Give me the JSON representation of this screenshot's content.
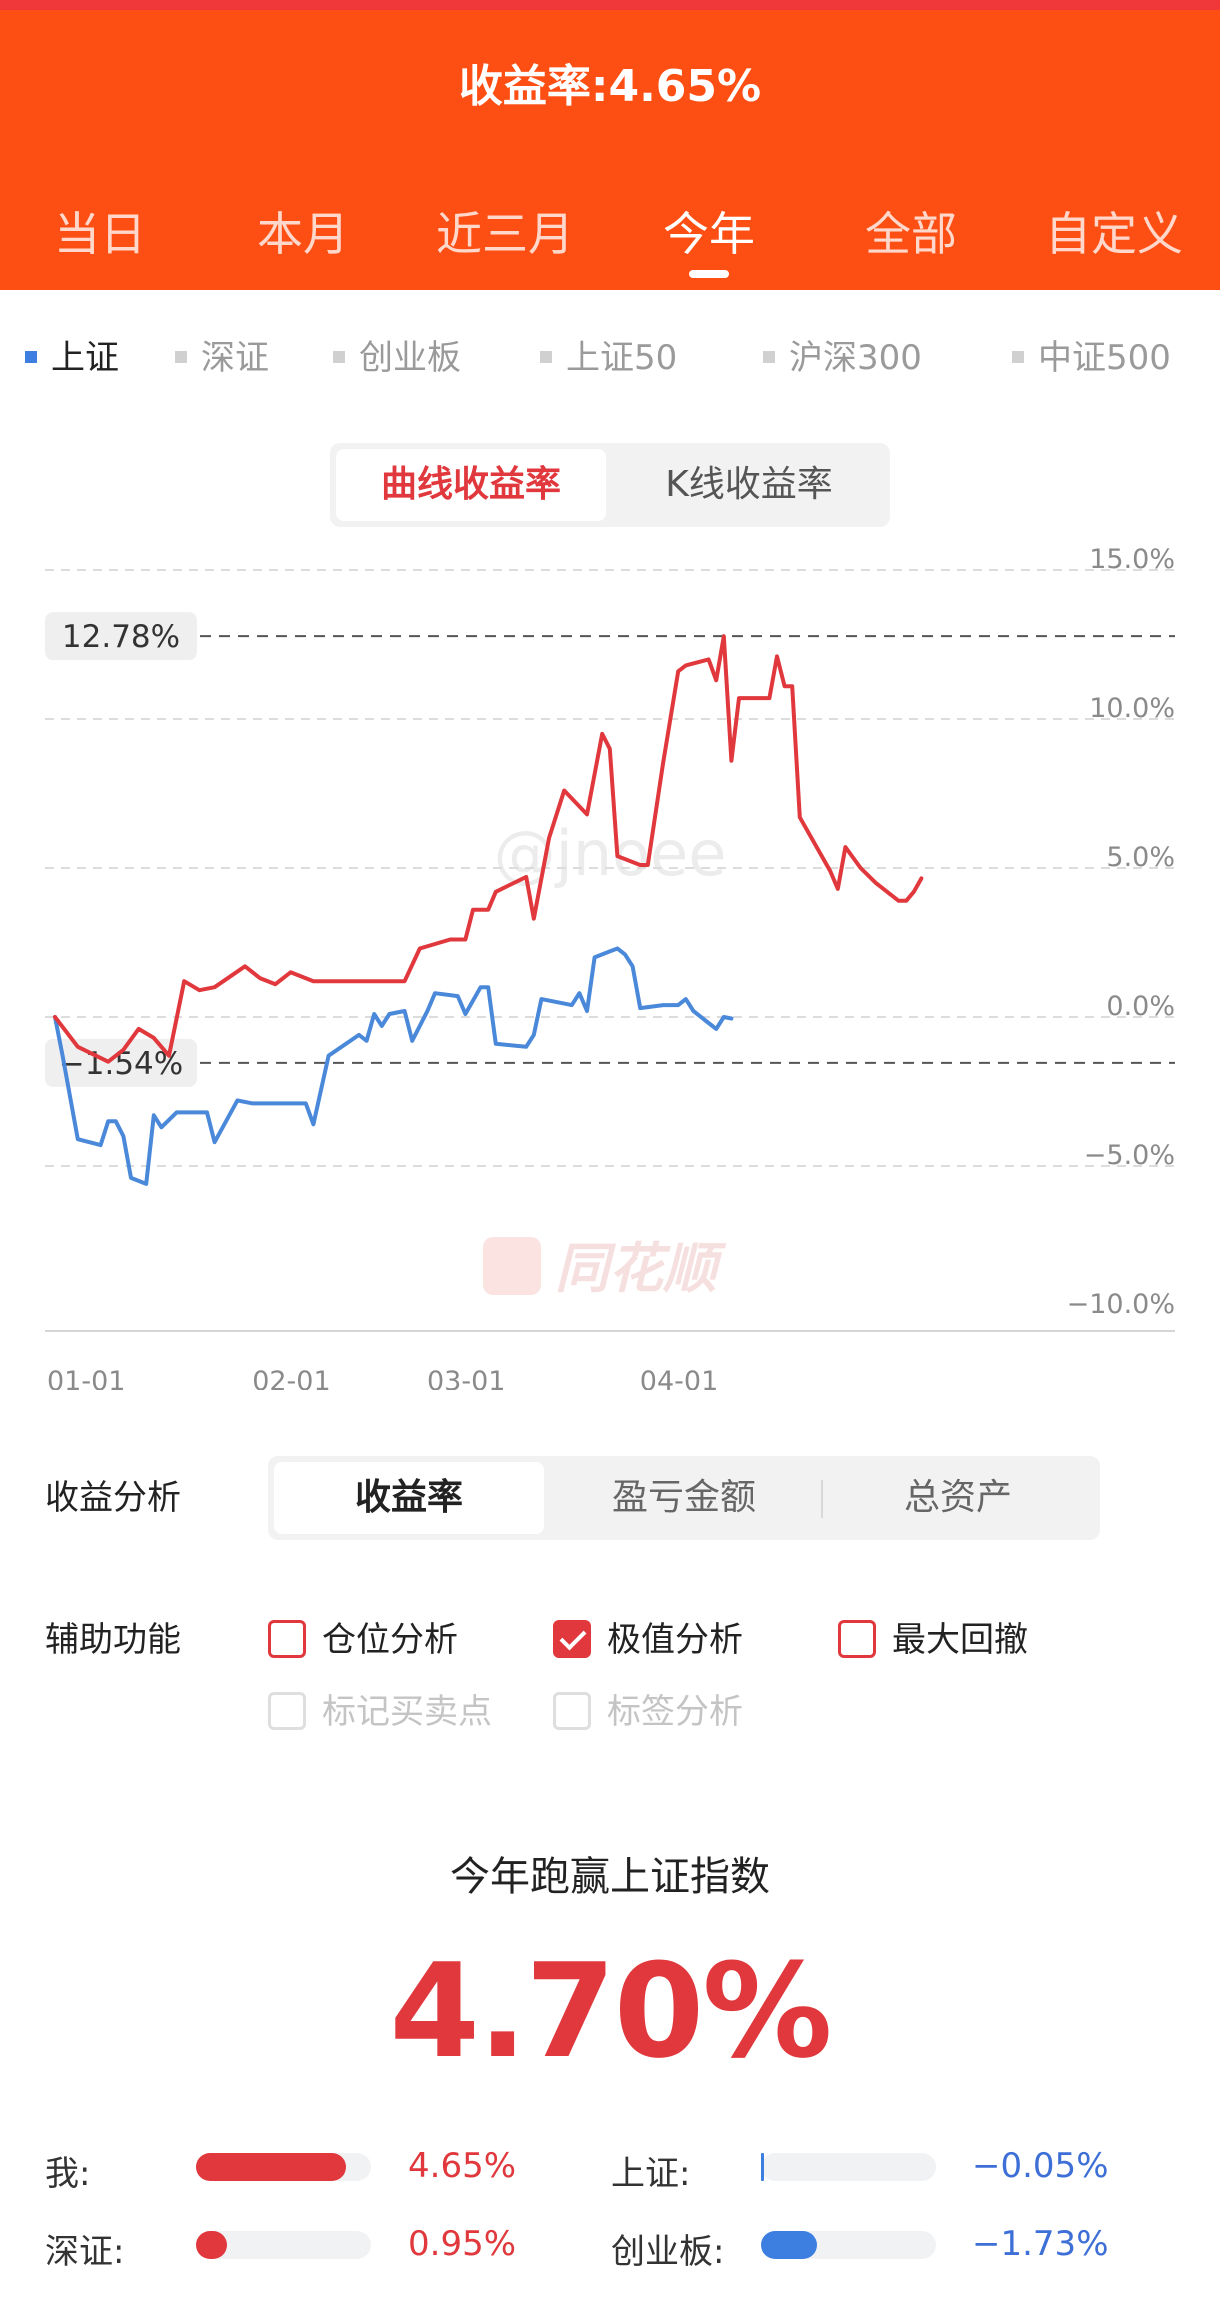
{
  "header": {
    "title": "收益率:4.65%"
  },
  "tabs": [
    {
      "label": "当日"
    },
    {
      "label": "本月"
    },
    {
      "label": "近三月"
    },
    {
      "label": "今年",
      "active": true
    },
    {
      "label": "全部"
    },
    {
      "label": "自定义"
    }
  ],
  "indices": [
    {
      "label": "上证",
      "active": true
    },
    {
      "label": "深证"
    },
    {
      "label": "创业板"
    },
    {
      "label": "上证50"
    },
    {
      "label": "沪深300"
    },
    {
      "label": "中证500"
    }
  ],
  "chart_toggle": {
    "curve": "曲线收益率",
    "kline": "K线收益率",
    "active": "curve"
  },
  "chart_data": {
    "type": "line",
    "watermarks": [
      "@jnoee",
      "同花顺"
    ],
    "yticks": [
      "15.0%",
      "10.0%",
      "5.0%",
      "0.0%",
      "−5.0%",
      "−10.0%"
    ],
    "ylim": [
      -10,
      15
    ],
    "xticks": [
      "01-01",
      "02-01",
      "03-01",
      "04-01"
    ],
    "max_label": "12.78%",
    "min_label": "−1.54%",
    "max_value": 12.78,
    "min_value": -1.54,
    "series": [
      {
        "name": "我",
        "color": "#e0383c",
        "points": [
          [
            0,
            0
          ],
          [
            3,
            -1
          ],
          [
            7,
            -1.5
          ],
          [
            9,
            -1.1
          ],
          [
            11,
            -0.4
          ],
          [
            13,
            -0.7
          ],
          [
            15,
            -1.3
          ],
          [
            17,
            1.2
          ],
          [
            19,
            0.9
          ],
          [
            21,
            1.0
          ],
          [
            25,
            1.7
          ],
          [
            27,
            1.3
          ],
          [
            29,
            1.1
          ],
          [
            31,
            1.5
          ],
          [
            34,
            1.2
          ],
          [
            37,
            1.2
          ],
          [
            46,
            1.2
          ],
          [
            48,
            2.3
          ],
          [
            52,
            2.6
          ],
          [
            54,
            2.6
          ],
          [
            55,
            3.6
          ],
          [
            57,
            3.6
          ],
          [
            58,
            4.2
          ],
          [
            62,
            4.7
          ],
          [
            63,
            3.3
          ],
          [
            65,
            6.0
          ],
          [
            67,
            7.6
          ],
          [
            70,
            6.8
          ],
          [
            72,
            9.5
          ],
          [
            73,
            9.0
          ],
          [
            74,
            5.4
          ],
          [
            77,
            5.1
          ],
          [
            78,
            5.1
          ],
          [
            80,
            8.5
          ],
          [
            82,
            11.6
          ],
          [
            83,
            11.8
          ],
          [
            86,
            12.0
          ],
          [
            87,
            11.3
          ],
          [
            88,
            12.78
          ],
          [
            89,
            8.6
          ],
          [
            90,
            10.7
          ],
          [
            93,
            10.7
          ],
          [
            94,
            10.7
          ],
          [
            95,
            12.1
          ],
          [
            96,
            11.1
          ],
          [
            97,
            11.1
          ],
          [
            98,
            6.7
          ],
          [
            102,
            4.9
          ],
          [
            103,
            4.3
          ],
          [
            104,
            5.7
          ],
          [
            106,
            5.0
          ],
          [
            108,
            4.5
          ],
          [
            111,
            3.9
          ],
          [
            112,
            3.9
          ],
          [
            113,
            4.2
          ],
          [
            114,
            4.65
          ]
        ]
      },
      {
        "name": "上证",
        "color": "#4a88d9",
        "points": [
          [
            0,
            0
          ],
          [
            1,
            -1.3
          ],
          [
            3,
            -4.1
          ],
          [
            6,
            -4.3
          ],
          [
            7,
            -3.5
          ],
          [
            8,
            -3.5
          ],
          [
            9,
            -4.0
          ],
          [
            10,
            -5.4
          ],
          [
            12,
            -5.6
          ],
          [
            13,
            -3.3
          ],
          [
            14,
            -3.7
          ],
          [
            16,
            -3.2
          ],
          [
            20,
            -3.2
          ],
          [
            21,
            -4.2
          ],
          [
            24,
            -2.8
          ],
          [
            26,
            -2.9
          ],
          [
            33,
            -2.9
          ],
          [
            34,
            -3.6
          ],
          [
            36,
            -1.3
          ],
          [
            40,
            -0.6
          ],
          [
            41,
            -0.8
          ],
          [
            42,
            0.1
          ],
          [
            43,
            -0.3
          ],
          [
            44,
            0.1
          ],
          [
            46,
            0.2
          ],
          [
            47,
            -0.8
          ],
          [
            49,
            0.2
          ],
          [
            50,
            0.8
          ],
          [
            53,
            0.7
          ],
          [
            54,
            0.1
          ],
          [
            56,
            1.0
          ],
          [
            57,
            1.0
          ],
          [
            58,
            -0.9
          ],
          [
            62,
            -1.0
          ],
          [
            63,
            -0.6
          ],
          [
            64,
            0.6
          ],
          [
            66,
            0.5
          ],
          [
            68,
            0.4
          ],
          [
            69,
            0.8
          ],
          [
            70,
            0.2
          ],
          [
            71,
            2.0
          ],
          [
            73,
            2.2
          ],
          [
            74,
            2.3
          ],
          [
            75,
            2.1
          ],
          [
            76,
            1.7
          ],
          [
            77,
            0.3
          ],
          [
            80,
            0.4
          ],
          [
            82,
            0.4
          ],
          [
            83,
            0.6
          ],
          [
            84,
            0.2
          ],
          [
            86,
            -0.2
          ],
          [
            87,
            -0.4
          ],
          [
            88,
            0.0
          ],
          [
            89,
            -0.05
          ]
        ]
      }
    ]
  },
  "analysis": {
    "label": "收益分析",
    "options": [
      "收益率",
      "盈亏金额",
      "总资产"
    ],
    "active": 0
  },
  "aux": {
    "label": "辅助功能",
    "options": [
      {
        "label": "仓位分析",
        "checked": false,
        "disabled": false
      },
      {
        "label": "极值分析",
        "checked": true,
        "disabled": false
      },
      {
        "label": "最大回撤",
        "checked": false,
        "disabled": false
      },
      {
        "label": "标记买卖点",
        "checked": false,
        "disabled": true
      },
      {
        "label": "标签分析",
        "checked": false,
        "disabled": true
      }
    ]
  },
  "result": {
    "title": "今年跑赢上证指数",
    "value": "4.70%"
  },
  "compare": [
    {
      "label": "我:",
      "value": "4.65%",
      "num": 4.65,
      "color": "#e0383c",
      "value_color": "#e0383c"
    },
    {
      "label": "上证:",
      "value": "−0.05%",
      "num": -0.05,
      "color": "#3d7fe0",
      "value_color": "#3d6fd6"
    },
    {
      "label": "深证:",
      "value": "0.95%",
      "num": 0.95,
      "color": "#e0383c",
      "value_color": "#e0383c"
    },
    {
      "label": "创业板:",
      "value": "−1.73%",
      "num": -1.73,
      "color": "#3d7fe0",
      "value_color": "#3d6fd6"
    }
  ]
}
